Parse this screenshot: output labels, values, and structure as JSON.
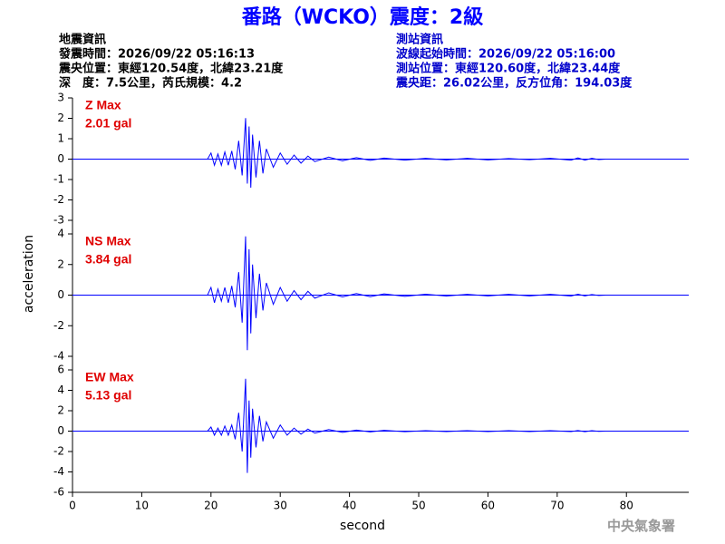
{
  "header": {
    "title": "番路（WCKO）震度：2級",
    "left": [
      "地震資訊",
      "發震時間：2026/09/22 05:16:13",
      "震央位置：東經120.54度，北緯23.21度",
      "深　度：7.5公里，芮氏規模：4.2"
    ],
    "right": [
      "測站資訊",
      "波線起始時間：2026/09/22 05:16:00",
      "測站位置：東經120.60度，北緯23.44度",
      "震央距：26.02公里，反方位角：194.03度"
    ]
  },
  "ylabel": "acceleration",
  "footer": "中央氣象署",
  "chart_data": [
    {
      "type": "line",
      "annotation": [
        "Z Max",
        "2.01 gal"
      ],
      "color": "#0000ff",
      "xlim": [
        0,
        89
      ],
      "ylim": [
        -3,
        3
      ],
      "yticks": [
        3,
        2,
        1,
        0,
        -1,
        -2,
        -3
      ],
      "x": [
        0,
        19.5,
        20,
        20.5,
        21,
        21.5,
        22,
        22.5,
        23,
        23.5,
        24,
        24.5,
        25,
        25.25,
        25.5,
        25.75,
        26,
        26.5,
        27,
        27.5,
        28,
        29,
        30,
        31,
        32,
        33,
        34,
        35,
        37,
        39,
        41,
        43,
        45,
        48,
        51,
        54,
        57,
        60,
        63,
        66,
        69,
        72,
        73,
        74,
        75,
        76,
        77,
        89
      ],
      "values": [
        0,
        0,
        0.3,
        -0.3,
        0.25,
        -0.3,
        0.35,
        -0.3,
        0.4,
        -0.5,
        0.9,
        -0.8,
        2.01,
        -1.2,
        1.6,
        -1.4,
        1.2,
        -0.9,
        0.9,
        -0.7,
        0.5,
        -0.4,
        0.3,
        -0.25,
        0.2,
        -0.2,
        0.15,
        -0.12,
        0.1,
        -0.08,
        0.07,
        -0.06,
        0.05,
        -0.05,
        0.04,
        -0.04,
        0.04,
        -0.04,
        0.03,
        -0.03,
        0.04,
        -0.05,
        0.06,
        -0.05,
        0.04,
        -0.02,
        0,
        0
      ]
    },
    {
      "type": "line",
      "annotation": [
        "NS Max",
        "3.84 gal"
      ],
      "color": "#0000ff",
      "xlim": [
        0,
        89
      ],
      "ylim": [
        -4,
        4
      ],
      "yticks": [
        4,
        2,
        0,
        -2,
        -4
      ],
      "x": [
        0,
        19.5,
        20,
        20.5,
        21,
        21.5,
        22,
        22.5,
        23,
        23.5,
        24,
        24.5,
        25,
        25.25,
        25.5,
        25.75,
        26,
        26.5,
        27,
        27.5,
        28,
        29,
        30,
        31,
        32,
        33,
        34,
        35,
        37,
        39,
        41,
        43,
        45,
        48,
        51,
        54,
        57,
        60,
        63,
        66,
        69,
        72,
        73,
        74,
        75,
        76,
        77,
        89
      ],
      "values": [
        0,
        0,
        0.5,
        -0.5,
        0.4,
        -0.4,
        0.5,
        -0.5,
        0.6,
        -0.8,
        1.5,
        -1.8,
        3.84,
        -3.6,
        3.0,
        -2.5,
        2.0,
        -1.5,
        1.4,
        -1.0,
        0.8,
        -0.6,
        0.5,
        -0.4,
        0.3,
        -0.3,
        0.25,
        -0.2,
        0.15,
        -0.12,
        0.1,
        -0.1,
        0.08,
        -0.08,
        0.06,
        -0.06,
        0.05,
        -0.05,
        0.05,
        -0.05,
        0.05,
        -0.06,
        0.06,
        -0.05,
        0.04,
        -0.02,
        0,
        0
      ]
    },
    {
      "type": "line",
      "annotation": [
        "EW Max",
        "5.13 gal"
      ],
      "color": "#0000ff",
      "xlim": [
        0,
        89
      ],
      "ylim": [
        -6,
        6
      ],
      "yticks": [
        6,
        4,
        2,
        0,
        -2,
        -4,
        -6
      ],
      "xlabel": "second",
      "xticks": [
        0,
        10,
        20,
        30,
        40,
        50,
        60,
        70,
        80
      ],
      "x": [
        0,
        19.5,
        20,
        20.5,
        21,
        21.5,
        22,
        22.5,
        23,
        23.5,
        24,
        24.5,
        25,
        25.25,
        25.5,
        25.75,
        26,
        26.5,
        27,
        27.5,
        28,
        29,
        30,
        31,
        32,
        33,
        34,
        35,
        37,
        39,
        41,
        43,
        45,
        48,
        51,
        54,
        57,
        60,
        63,
        66,
        69,
        72,
        73,
        74,
        75,
        76,
        77,
        89
      ],
      "values": [
        0,
        0,
        0.4,
        -0.4,
        0.3,
        -0.4,
        0.5,
        -0.4,
        0.6,
        -0.8,
        1.8,
        -2.0,
        5.13,
        -4.1,
        3.0,
        -2.6,
        2.2,
        -1.6,
        1.5,
        -1.0,
        0.9,
        -0.7,
        0.6,
        -0.4,
        0.3,
        -0.3,
        0.2,
        -0.2,
        0.15,
        -0.12,
        0.1,
        -0.08,
        0.08,
        -0.06,
        0.05,
        -0.05,
        0.05,
        -0.04,
        0.04,
        -0.04,
        0.04,
        -0.05,
        0.06,
        -0.05,
        0.04,
        -0.02,
        0,
        0
      ]
    }
  ]
}
